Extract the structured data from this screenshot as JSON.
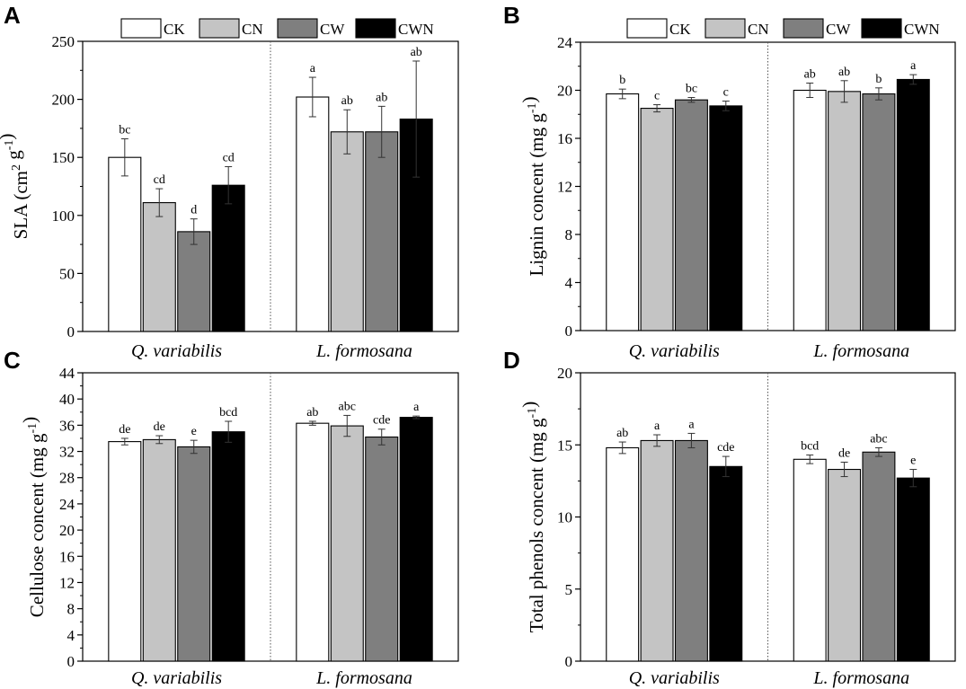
{
  "colors": {
    "CK": "#ffffff",
    "CN": "#c4c4c4",
    "CW": "#7f7f7f",
    "CWN": "#000000"
  },
  "chart_data": [
    {
      "panel": "A",
      "type": "bar",
      "ylabel": "SLA (cm² g⁻¹)",
      "ylabel_parts": {
        "main": "SLA (cm",
        "sup1": "2",
        "mid": " g",
        "sup2": "-1",
        "end": ")"
      },
      "ylim": [
        0,
        250
      ],
      "yticks": [
        0,
        50,
        100,
        150,
        200,
        250
      ],
      "categories": [
        "Q. variabilis",
        "L. formosana"
      ],
      "legend": [
        "CK",
        "CN",
        "CW",
        "CWN"
      ],
      "series": [
        {
          "name": "CK",
          "values": [
            150,
            202
          ],
          "errors": [
            16,
            17
          ],
          "letters": [
            "bc",
            "a"
          ]
        },
        {
          "name": "CN",
          "values": [
            111,
            172
          ],
          "errors": [
            12,
            19
          ],
          "letters": [
            "cd",
            "ab"
          ]
        },
        {
          "name": "CW",
          "values": [
            86,
            172
          ],
          "errors": [
            11,
            22
          ],
          "letters": [
            "d",
            "ab"
          ]
        },
        {
          "name": "CWN",
          "values": [
            126,
            183
          ],
          "errors": [
            16,
            50
          ],
          "letters": [
            "cd",
            "ab"
          ]
        }
      ]
    },
    {
      "panel": "B",
      "type": "bar",
      "ylabel": "Lignin concent (mg g⁻¹)",
      "ylabel_parts": {
        "main": "Lignin concent (mg g",
        "sup1": "",
        "mid": "",
        "sup2": "-1",
        "end": ")"
      },
      "ylim": [
        0,
        24
      ],
      "yticks": [
        0,
        4,
        8,
        12,
        16,
        20,
        24
      ],
      "categories": [
        "Q. variabilis",
        "L. formosana"
      ],
      "legend": [
        "CK",
        "CN",
        "CW",
        "CWN"
      ],
      "series": [
        {
          "name": "CK",
          "values": [
            19.7,
            20.0
          ],
          "errors": [
            0.4,
            0.6
          ],
          "letters": [
            "b",
            "ab"
          ]
        },
        {
          "name": "CN",
          "values": [
            18.5,
            19.9
          ],
          "errors": [
            0.3,
            0.9
          ],
          "letters": [
            "c",
            "ab"
          ]
        },
        {
          "name": "CW",
          "values": [
            19.2,
            19.7
          ],
          "errors": [
            0.2,
            0.5
          ],
          "letters": [
            "bc",
            "b"
          ]
        },
        {
          "name": "CWN",
          "values": [
            18.7,
            20.9
          ],
          "errors": [
            0.4,
            0.4
          ],
          "letters": [
            "c",
            "a"
          ]
        }
      ]
    },
    {
      "panel": "C",
      "type": "bar",
      "ylabel": "Cellulose concent (mg g⁻¹)",
      "ylabel_parts": {
        "main": "Cellulose concent (mg g",
        "sup1": "",
        "mid": "",
        "sup2": "-1",
        "end": ")"
      },
      "ylim": [
        0,
        44
      ],
      "yticks": [
        0,
        4,
        8,
        12,
        16,
        20,
        24,
        28,
        32,
        36,
        40,
        44
      ],
      "categories": [
        "Q. variabilis",
        "L. formosana"
      ],
      "legend": [
        "CK",
        "CN",
        "CW",
        "CWN"
      ],
      "series": [
        {
          "name": "CK",
          "values": [
            33.5,
            36.3
          ],
          "errors": [
            0.5,
            0.3
          ],
          "letters": [
            "de",
            "ab"
          ]
        },
        {
          "name": "CN",
          "values": [
            33.8,
            35.9
          ],
          "errors": [
            0.6,
            1.6
          ],
          "letters": [
            "de",
            "abc"
          ]
        },
        {
          "name": "CW",
          "values": [
            32.7,
            34.2
          ],
          "errors": [
            1.0,
            1.2
          ],
          "letters": [
            "e",
            "cde"
          ]
        },
        {
          "name": "CWN",
          "values": [
            35.0,
            37.2
          ],
          "errors": [
            1.6,
            0.2
          ],
          "letters": [
            "bcd",
            "a"
          ]
        }
      ]
    },
    {
      "panel": "D",
      "type": "bar",
      "ylabel": "Total phenols concent (mg g⁻¹)",
      "ylabel_parts": {
        "main": "Total phenols concent (mg g",
        "sup1": "",
        "mid": "",
        "sup2": "-1",
        "end": ")"
      },
      "ylim": [
        0,
        20
      ],
      "yticks": [
        0,
        5,
        10,
        15,
        20
      ],
      "categories": [
        "Q. variabilis",
        "L. formosana"
      ],
      "legend": [
        "CK",
        "CN",
        "CW",
        "CWN"
      ],
      "series": [
        {
          "name": "CK",
          "values": [
            14.8,
            14.0
          ],
          "errors": [
            0.4,
            0.3
          ],
          "letters": [
            "ab",
            "bcd"
          ]
        },
        {
          "name": "CN",
          "values": [
            15.3,
            13.3
          ],
          "errors": [
            0.4,
            0.5
          ],
          "letters": [
            "a",
            "de"
          ]
        },
        {
          "name": "CW",
          "values": [
            15.3,
            14.5
          ],
          "errors": [
            0.5,
            0.3
          ],
          "letters": [
            "a",
            "abc"
          ]
        },
        {
          "name": "CWN",
          "values": [
            13.5,
            12.7
          ],
          "errors": [
            0.7,
            0.6
          ],
          "letters": [
            "cde",
            "e"
          ]
        }
      ]
    }
  ]
}
